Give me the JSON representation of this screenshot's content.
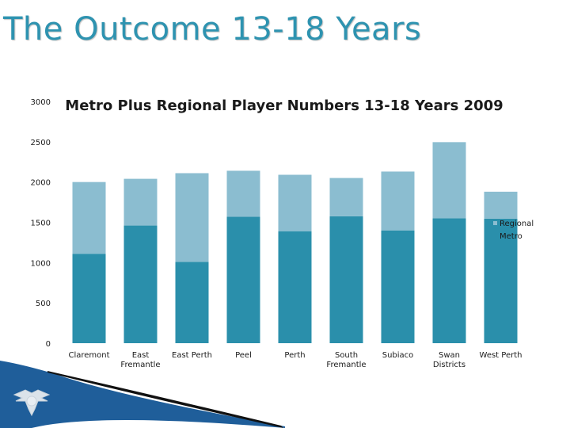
{
  "slide": {
    "title": "The Outcome 13-18 Years"
  },
  "colors": {
    "accent": "#2e93b0",
    "metro": "#2a8fab",
    "regional": "#8bbdd0"
  },
  "chart_data": {
    "type": "bar",
    "stacked": true,
    "title": "Metro Plus Regional Player Numbers 13-18 Years 2009",
    "xlabel": "",
    "ylabel": "",
    "ylim": [
      0,
      3000
    ],
    "yticks": [
      {
        "value": 0,
        "label": "0"
      },
      {
        "value": 500,
        "label": "500"
      },
      {
        "value": 1000,
        "label": "1000"
      },
      {
        "value": 1500,
        "label": "1500"
      },
      {
        "value": 2000,
        "label": "2000"
      },
      {
        "value": 2500,
        "label": "2500"
      },
      {
        "value": 3000,
        "label": "3000"
      }
    ],
    "categories": [
      [
        "Claremont"
      ],
      [
        "East",
        "Fremantle"
      ],
      [
        "East Perth"
      ],
      [
        "Peel"
      ],
      [
        "Perth"
      ],
      [
        "South",
        "Fremantle"
      ],
      [
        "Subiaco"
      ],
      [
        "Swan",
        "Districts"
      ],
      [
        "West Perth"
      ]
    ],
    "series": [
      {
        "name": "Metro",
        "values": [
          1110,
          1460,
          1010,
          1570,
          1390,
          1575,
          1400,
          1550,
          1545
        ]
      },
      {
        "name": "Regional",
        "values": [
          890,
          580,
          1100,
          570,
          700,
          475,
          730,
          945,
          335
        ]
      }
    ],
    "legend": {
      "position": "right",
      "entries": [
        "Regional",
        "Metro"
      ]
    }
  }
}
